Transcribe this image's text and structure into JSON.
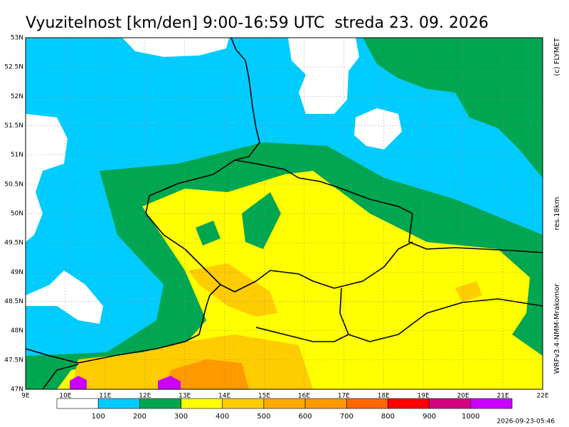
{
  "title": "Vyuzitelnost [km/den] 9:00-16:59 UTC  streda 23. 09. 2026",
  "credits": "(c) FLYMET",
  "resolution": "res.18km",
  "model": "WRFv3.4-NMM-Mrakomor",
  "lat_labels": [
    "47N",
    "47.5N",
    "48N",
    "48.5N",
    "49N",
    "49.5N",
    "50N",
    "50.5N",
    "51N",
    "51.5N",
    "52N",
    "52.5N",
    "53N"
  ],
  "lon_labels": [
    "9E",
    "10E",
    "11E",
    "12E",
    "13E",
    "14E",
    "15E",
    "16E",
    "17E",
    "18E",
    "19E",
    "20E",
    "21E",
    "22E"
  ],
  "legend": {
    "colors": [
      "#ffffff",
      "#00ccff",
      "#00a650",
      "#ffff00",
      "#ffcc00",
      "#ffaa00",
      "#ff9900",
      "#ff6600",
      "#ff0000",
      "#d4007f",
      "#cc00ff"
    ],
    "labels": [
      100,
      200,
      300,
      400,
      500,
      600,
      700,
      800,
      900,
      1000
    ]
  },
  "timestamp": "2026-09-23-05:46"
}
